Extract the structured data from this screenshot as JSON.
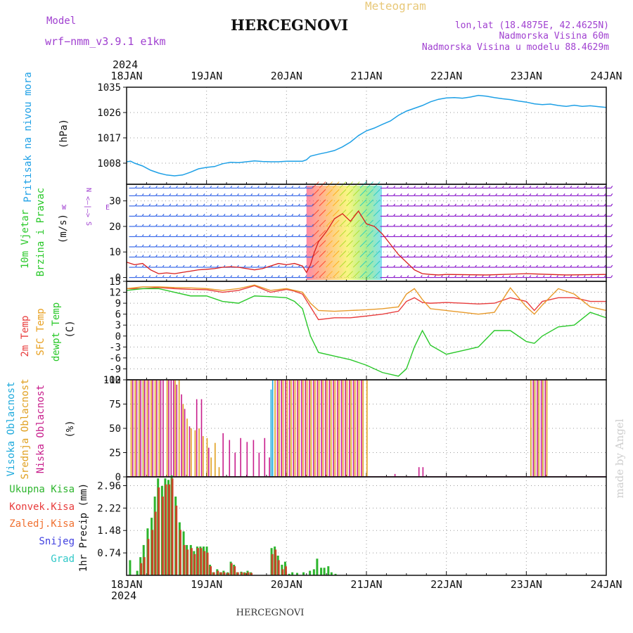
{
  "header": {
    "model_label": "Model",
    "model_name": "wrf−nmm_v3.9.1  e1km",
    "meteogram": "Meteogram",
    "title": "HERCEGNOVI",
    "lonlat": "lon,lat (18.4875E, 42.4625N)",
    "elevation": "Nadmorska Visina 60m",
    "model_elevation": "Nadmorska Visina u modelu 88.4629m",
    "footer": "HERCEGNOVI",
    "watermark": "made by Angel"
  },
  "time_axis": {
    "year": "2024",
    "days": [
      "18JAN",
      "19JAN",
      "20JAN",
      "21JAN",
      "22JAN",
      "23JAN",
      "24JAN"
    ]
  },
  "colors": {
    "pressure": "#1ea0e6",
    "t2m": "#e83c3c",
    "sfc": "#e89a2a",
    "dewpt": "#2ac82a",
    "high_cloud": "#1eaadc",
    "mid_cloud": "#e0a020",
    "low_cloud": "#c81e8c",
    "wind_speed": "#d81e1e",
    "wind_barb": "#8c1ecc",
    "precip_total": "#2db52d",
    "precip_conv": "#c84628"
  },
  "chart_data": [
    {
      "id": "pressure",
      "type": "line",
      "ylabel": "Pritisak na nivou mora",
      "unit": "(hPa)",
      "yticks": [
        1008,
        1017,
        1026,
        1035
      ],
      "ylim": [
        1000.5,
        1035
      ],
      "x_days": [
        0,
        0.05,
        0.1,
        0.2,
        0.3,
        0.4,
        0.5,
        0.6,
        0.7,
        0.8,
        0.9,
        1.0,
        1.1,
        1.2,
        1.3,
        1.4,
        1.5,
        1.6,
        1.7,
        1.8,
        1.9,
        2.0,
        2.1,
        2.2,
        2.25,
        2.3,
        2.4,
        2.5,
        2.6,
        2.7,
        2.8,
        2.9,
        3.0,
        3.1,
        3.2,
        3.3,
        3.4,
        3.5,
        3.6,
        3.7,
        3.8,
        3.9,
        4.0,
        4.1,
        4.2,
        4.3,
        4.4,
        4.5,
        4.6,
        4.7,
        4.8,
        4.9,
        5.0,
        5.1,
        5.2,
        5.3,
        5.4,
        5.5,
        5.6,
        5.7,
        5.8,
        5.9,
        6.0
      ],
      "values": [
        1008.5,
        1008.7,
        1008.0,
        1007.0,
        1005.5,
        1004.5,
        1003.8,
        1003.5,
        1003.8,
        1004.8,
        1006.0,
        1006.5,
        1006.8,
        1007.8,
        1008.3,
        1008.2,
        1008.5,
        1008.8,
        1008.6,
        1008.5,
        1008.5,
        1008.7,
        1008.7,
        1008.7,
        1009.2,
        1010.5,
        1011.2,
        1011.8,
        1012.5,
        1013.8,
        1015.5,
        1017.8,
        1019.5,
        1020.5,
        1021.8,
        1023.0,
        1025.0,
        1026.5,
        1027.5,
        1028.5,
        1029.8,
        1030.7,
        1031.2,
        1031.3,
        1031.1,
        1031.5,
        1032.1,
        1031.8,
        1031.3,
        1030.9,
        1030.6,
        1030.1,
        1029.7,
        1029.1,
        1028.8,
        1029.0,
        1028.5,
        1028.2,
        1028.6,
        1028.2,
        1028.4,
        1028.1,
        1027.8
      ]
    },
    {
      "id": "wind",
      "type": "line",
      "ylabel": "10m Vjetar",
      "ylabel2": "Brzina i Pravac",
      "unit": "(m/s)",
      "compass": [
        "N",
        "<—|—>",
        "W",
        "E",
        "S"
      ],
      "yticks": [
        0,
        10,
        20,
        30
      ],
      "ylim": [
        -1.5,
        36.5
      ],
      "x_days": [
        0,
        0.1,
        0.2,
        0.3,
        0.4,
        0.5,
        0.6,
        0.7,
        0.8,
        0.9,
        1.0,
        1.1,
        1.2,
        1.3,
        1.4,
        1.5,
        1.6,
        1.7,
        1.8,
        1.9,
        2.0,
        2.1,
        2.2,
        2.25,
        2.3,
        2.35,
        2.4,
        2.5,
        2.6,
        2.7,
        2.8,
        2.9,
        3.0,
        3.1,
        3.2,
        3.3,
        3.4,
        3.5,
        3.6,
        3.7,
        3.8,
        3.9,
        4.0,
        4.5,
        5.0,
        5.5,
        6.0
      ],
      "values": [
        6,
        5,
        5.5,
        3,
        1.5,
        1.8,
        1.5,
        2.0,
        2.5,
        3.0,
        3.2,
        3.5,
        4.0,
        4.2,
        4.0,
        3.5,
        3.0,
        3.5,
        4.5,
        5.5,
        5.0,
        5.5,
        4.5,
        2.0,
        5.0,
        10.0,
        14.0,
        18.0,
        23.0,
        25.0,
        22.0,
        26.0,
        21.0,
        20.0,
        17.0,
        13.0,
        9.0,
        6.0,
        3.0,
        1.5,
        1.2,
        1.0,
        1.2,
        1.0,
        1.5,
        1.0,
        1.2
      ],
      "barb_rows": [
        0,
        4,
        8,
        12,
        16,
        20,
        24,
        28,
        32,
        35
      ],
      "ne_storm_window_days": [
        2.25,
        3.0
      ]
    },
    {
      "id": "temperature",
      "type": "line",
      "ylabel": "2m Temp",
      "ylabel2": "SFC Temp",
      "ylabel3": "dewpt Temp",
      "unit": "(C)",
      "yticks": [
        -12,
        -9,
        -6,
        -3,
        0,
        3,
        6,
        9,
        12,
        15
      ],
      "ylim": [
        -12,
        15
      ],
      "x_days": [
        0,
        0.2,
        0.4,
        0.6,
        0.8,
        1.0,
        1.2,
        1.4,
        1.6,
        1.8,
        2.0,
        2.1,
        2.2,
        2.3,
        2.4,
        2.6,
        2.8,
        3.0,
        3.2,
        3.4,
        3.5,
        3.6,
        3.7,
        3.8,
        4.0,
        4.2,
        4.4,
        4.6,
        4.8,
        5.0,
        5.1,
        5.2,
        5.4,
        5.6,
        5.8,
        6.0
      ],
      "series": [
        {
          "name": "2m Temp",
          "key": "t2m",
          "values": [
            13,
            13,
            13.3,
            13,
            12.8,
            12.7,
            12,
            12.5,
            13.8,
            12,
            12.8,
            12.3,
            11.5,
            8,
            4.5,
            5,
            5,
            5.5,
            6,
            6.8,
            9.5,
            10.5,
            9.2,
            9,
            9.2,
            9,
            8.8,
            9,
            10.5,
            9.5,
            7,
            9.5,
            10.5,
            10.5,
            9.5,
            9.5
          ]
        },
        {
          "name": "SFC Temp",
          "key": "sfc",
          "values": [
            13,
            13.5,
            13.5,
            13.3,
            13.2,
            13,
            12.5,
            13,
            14,
            12.5,
            13,
            12.5,
            12,
            9,
            7,
            6.8,
            7,
            7.2,
            7.5,
            8,
            11.5,
            13,
            10,
            7.5,
            7,
            6.5,
            6,
            6.5,
            13.2,
            8,
            6,
            8.5,
            13,
            11.5,
            8,
            7
          ]
        },
        {
          "name": "dewpt Temp",
          "key": "dewpt",
          "values": [
            12.5,
            13,
            13,
            12,
            11,
            11,
            9.5,
            9,
            11,
            10.8,
            10.5,
            9.5,
            7.5,
            0,
            -4.5,
            -5.5,
            -6.5,
            -8,
            -10,
            -11,
            -9,
            -3,
            1.5,
            -2.5,
            -5,
            -4,
            -3,
            1.5,
            1.5,
            -1.5,
            -2,
            0,
            2.5,
            3,
            6.5,
            5
          ]
        }
      ]
    },
    {
      "id": "cloud",
      "type": "bar",
      "ylabel": "Visoka Oblacnost",
      "ylabel2": "Srednja Oblacnost",
      "ylabel3": "Niska Oblacnost",
      "unit": "(%)",
      "yticks": [
        0,
        25,
        50,
        75,
        100
      ],
      "ylim": [
        0,
        100
      ],
      "series": [
        {
          "name": "Visoka Oblacnost",
          "key": "high_cloud",
          "x_days": [
            0.15,
            0.2,
            1.8,
            1.82,
            1.9,
            2.0,
            5.05,
            5.1,
            5.15,
            5.2
          ],
          "values": [
            100,
            100,
            90,
            100,
            100,
            50,
            50,
            100,
            100,
            100
          ]
        },
        {
          "name": "Srednja Oblacnost",
          "key": "mid_cloud",
          "x_days": [
            0.05,
            0.1,
            0.15,
            0.2,
            0.25,
            0.3,
            0.35,
            0.4,
            0.5,
            0.6,
            0.65,
            0.7,
            0.75,
            0.8,
            0.85,
            0.9,
            0.95,
            1.0,
            1.05,
            1.1,
            1.15,
            1.85,
            1.9,
            1.95,
            2.0,
            2.05,
            2.1,
            2.15,
            2.2,
            2.25,
            2.3,
            2.35,
            2.4,
            2.45,
            2.5,
            2.55,
            2.6,
            2.65,
            2.7,
            2.75,
            2.8,
            2.85,
            2.9,
            2.95,
            3.0,
            5.05,
            5.1,
            5.15,
            5.2,
            5.25
          ],
          "values": [
            100,
            100,
            100,
            100,
            100,
            100,
            100,
            100,
            100,
            100,
            100,
            75,
            60,
            50,
            48,
            50,
            42,
            40,
            20,
            35,
            10,
            100,
            100,
            100,
            100,
            100,
            100,
            100,
            100,
            100,
            100,
            100,
            100,
            100,
            100,
            100,
            100,
            100,
            100,
            100,
            100,
            100,
            100,
            100,
            100,
            100,
            100,
            100,
            100,
            100
          ]
        },
        {
          "name": "Niska Oblacnost",
          "key": "low_cloud",
          "x_days": [
            0.07,
            0.12,
            0.17,
            0.22,
            0.27,
            0.32,
            0.37,
            0.42,
            0.45,
            0.52,
            0.55,
            0.58,
            0.62,
            0.68,
            0.72,
            0.78,
            0.87,
            0.93,
            1.02,
            1.2,
            1.28,
            1.35,
            1.42,
            1.5,
            1.58,
            1.65,
            1.72,
            1.78,
            1.88,
            1.93,
            1.98,
            2.03,
            2.08,
            2.13,
            2.18,
            2.23,
            2.28,
            2.33,
            2.38,
            2.43,
            2.48,
            2.53,
            2.58,
            2.63,
            2.68,
            2.73,
            2.78,
            2.83,
            2.88,
            2.93,
            3.35,
            3.65,
            3.7,
            5.08,
            5.13,
            5.18,
            5.23
          ],
          "values": [
            100,
            100,
            100,
            100,
            100,
            100,
            100,
            100,
            100,
            100,
            100,
            100,
            95,
            85,
            70,
            52,
            80,
            80,
            30,
            45,
            38,
            25,
            40,
            36,
            38,
            25,
            40,
            20,
            100,
            100,
            100,
            100,
            100,
            100,
            100,
            100,
            100,
            100,
            100,
            100,
            100,
            100,
            100,
            100,
            100,
            100,
            100,
            100,
            100,
            100,
            3,
            10,
            10,
            100,
            100,
            100,
            100
          ]
        }
      ]
    },
    {
      "id": "precip",
      "type": "bar",
      "ylabel": "1hr Precip (mm)",
      "legend": [
        "Ukupna Kisa",
        "Konvek.Kisa",
        "Zaledj.Kisa",
        "Snijeg",
        "Grad"
      ],
      "yticks": [
        0.74,
        1.48,
        2.22,
        2.96
      ],
      "ylim": [
        0,
        3.25
      ],
      "x_days": [
        0.03,
        0.08,
        0.12,
        0.16,
        0.2,
        0.25,
        0.3,
        0.34,
        0.38,
        0.43,
        0.47,
        0.51,
        0.55,
        0.6,
        0.65,
        0.7,
        0.74,
        0.79,
        0.83,
        0.87,
        0.91,
        0.95,
        0.99,
        1.03,
        1.07,
        1.12,
        1.16,
        1.2,
        1.25,
        1.29,
        1.33,
        1.37,
        1.42,
        1.46,
        1.5,
        1.54,
        1.58,
        1.62,
        1.66,
        1.8,
        1.84,
        1.88,
        1.93,
        1.97,
        2.02,
        2.06,
        2.12,
        2.2,
        2.28,
        2.33,
        2.37,
        2.42,
        2.46,
        2.51,
        2.55,
        2.6
      ],
      "series": [
        {
          "name": "Ukupna Kisa",
          "key": "precip_total",
          "values": [
            0.5,
            0.0,
            0.15,
            0.6,
            1.0,
            1.55,
            1.9,
            2.6,
            3.2,
            2.95,
            3.2,
            3.15,
            3.3,
            2.6,
            1.75,
            1.45,
            1.0,
            1.0,
            0.8,
            0.95,
            0.95,
            0.95,
            0.95,
            0.35,
            0.1,
            0.2,
            0.1,
            0.15,
            0.1,
            0.45,
            0.35,
            0.1,
            0.12,
            0.1,
            0.15,
            0.1,
            0.0,
            0.0,
            0.0,
            0.9,
            0.95,
            0.65,
            0.35,
            0.45,
            0.05,
            0.1,
            0.08,
            0.1,
            0.15,
            0.2,
            0.55,
            0.25,
            0.25,
            0.3,
            0.1,
            0.05
          ]
        },
        {
          "name": "Konvek.Kisa",
          "key": "precip_conv",
          "values": [
            0.0,
            0.0,
            0.0,
            0.4,
            0.6,
            1.2,
            1.5,
            2.1,
            2.9,
            2.6,
            3.0,
            3.0,
            3.2,
            2.3,
            1.5,
            1.0,
            0.85,
            0.9,
            0.7,
            0.9,
            0.9,
            0.8,
            0.75,
            0.3,
            0.1,
            0.15,
            0.1,
            0.1,
            0.08,
            0.4,
            0.3,
            0.1,
            0.1,
            0.08,
            0.1,
            0.08,
            0.0,
            0.0,
            0.0,
            0.7,
            0.85,
            0.5,
            0.2,
            0.3,
            0.0,
            0.0,
            0.0,
            0.0,
            0.0,
            0.0,
            0.0,
            0.0,
            0.0,
            0.0,
            0.0,
            0.0
          ]
        }
      ]
    }
  ]
}
